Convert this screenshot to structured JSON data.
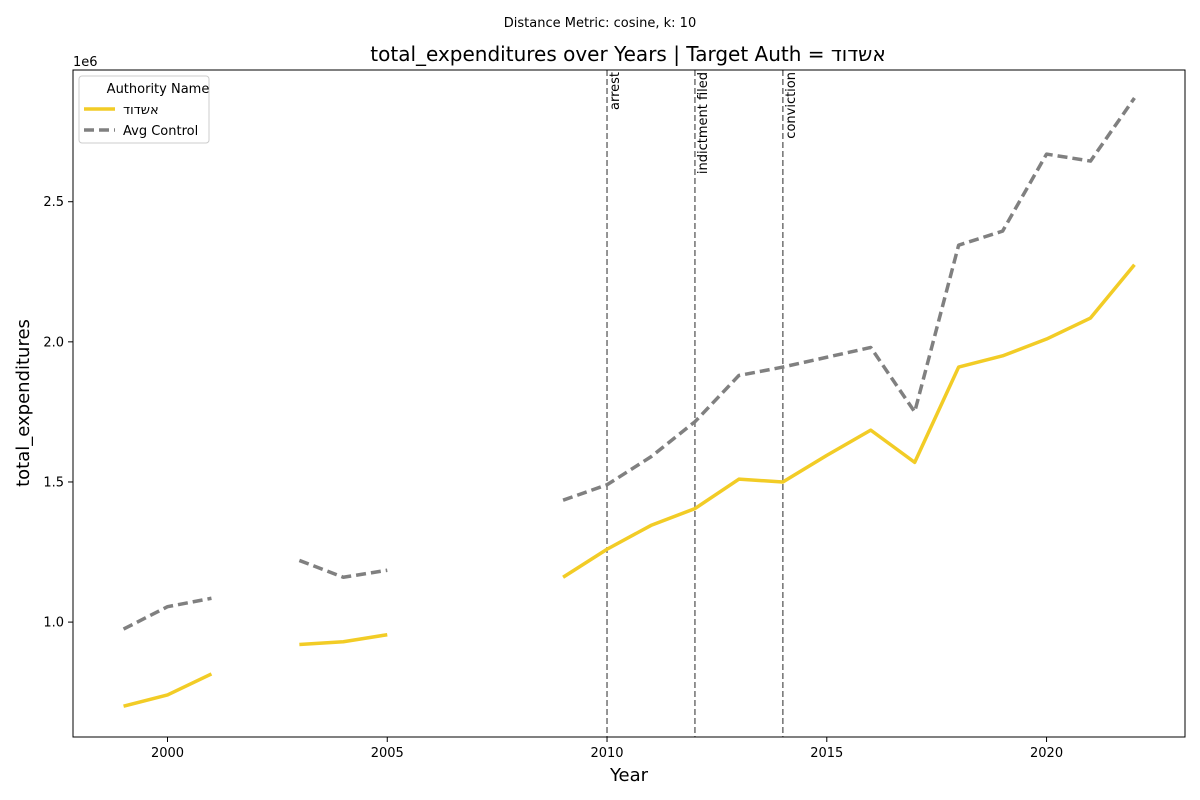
{
  "figure": {
    "suptitle": "Distance Metric: cosine, k: 10"
  },
  "chart_data": {
    "type": "line",
    "title": "total_expenditures over Years | Target Auth = אשדוד",
    "xlabel": "Year",
    "ylabel": "total_expenditures",
    "y_offset_label": "1e6",
    "xlim": [
      1997.85,
      2023.15
    ],
    "ylim": [
      0.59,
      2.97
    ],
    "y_scale_factor": 1000000,
    "x_ticks": [
      2000,
      2005,
      2010,
      2015,
      2020
    ],
    "x_tick_labels": [
      "2000",
      "2005",
      "2010",
      "2015",
      "2020"
    ],
    "y_ticks": [
      1.0,
      1.5,
      2.0,
      2.5
    ],
    "y_tick_labels": [
      "1.0",
      "1.5",
      "2.0",
      "2.5"
    ],
    "grid": false,
    "legend": {
      "title": "Authority Name",
      "placement": "top-left"
    },
    "series": [
      {
        "name": "אשדוד",
        "color": "#f2cc26",
        "style": "solid",
        "points": [
          [
            1999,
            0.7
          ],
          [
            2000,
            0.74
          ],
          [
            2001,
            0.815
          ],
          [
            2002,
            null
          ],
          [
            2003,
            0.92
          ],
          [
            2004,
            0.93
          ],
          [
            2005,
            0.955
          ],
          [
            2006,
            null
          ],
          [
            2009,
            1.16
          ],
          [
            2010,
            1.26
          ],
          [
            2011,
            1.345
          ],
          [
            2012,
            1.405
          ],
          [
            2013,
            1.51
          ],
          [
            2014,
            1.5
          ],
          [
            2015,
            1.595
          ],
          [
            2016,
            1.685
          ],
          [
            2017,
            1.57
          ],
          [
            2018,
            1.91
          ],
          [
            2019,
            1.95
          ],
          [
            2020,
            2.01
          ],
          [
            2021,
            2.085
          ],
          [
            2022,
            2.275
          ]
        ]
      },
      {
        "name": "Avg Control",
        "color": "#808080",
        "style": "dashed",
        "points": [
          [
            1999,
            0.975
          ],
          [
            2000,
            1.055
          ],
          [
            2001,
            1.085
          ],
          [
            2002,
            null
          ],
          [
            2003,
            1.22
          ],
          [
            2004,
            1.16
          ],
          [
            2005,
            1.185
          ],
          [
            2006,
            null
          ],
          [
            2009,
            1.435
          ],
          [
            2010,
            1.49
          ],
          [
            2011,
            1.59
          ],
          [
            2012,
            1.715
          ],
          [
            2013,
            1.88
          ],
          [
            2014,
            1.91
          ],
          [
            2015,
            1.945
          ],
          [
            2016,
            1.98
          ],
          [
            2017,
            1.75
          ],
          [
            2018,
            2.345
          ],
          [
            2019,
            2.395
          ],
          [
            2020,
            2.67
          ],
          [
            2021,
            2.645
          ],
          [
            2022,
            2.87
          ]
        ]
      }
    ],
    "events": [
      {
        "x": 2010,
        "label": "arrest"
      },
      {
        "x": 2012,
        "label": "indictment filed"
      },
      {
        "x": 2014,
        "label": "conviction"
      }
    ]
  }
}
